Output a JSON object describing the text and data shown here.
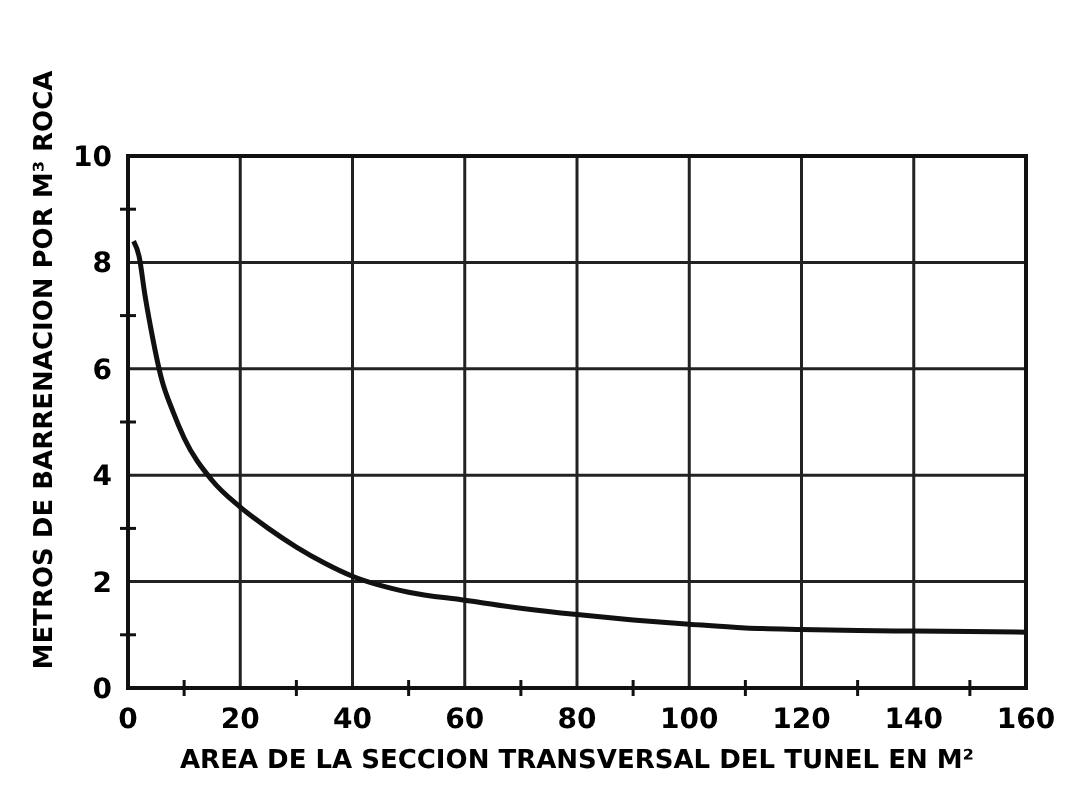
{
  "chart_data": {
    "type": "line",
    "xlabel": "AREA DE LA SECCION TRANSVERSAL DEL TUNEL EN M²",
    "ylabel": "METROS DE BARRENACION POR M³ ROCA",
    "xlim": [
      0,
      160
    ],
    "ylim": [
      0,
      10
    ],
    "xticks": [
      0,
      {
        "value": 10,
        "label": null
      },
      20,
      {
        "value": 30,
        "label": null
      },
      40,
      {
        "value": 50,
        "label": null
      },
      60,
      {
        "value": 70,
        "label": null
      },
      80,
      {
        "value": 90,
        "label": null
      },
      100,
      {
        "value": 110,
        "label": null
      },
      120,
      {
        "value": 130,
        "label": null
      },
      140,
      {
        "value": 150,
        "label": null
      },
      160
    ],
    "yticks": [
      0,
      {
        "value": 1,
        "label": null
      },
      2,
      {
        "value": 3,
        "label": null
      },
      4,
      {
        "value": 5,
        "label": null
      },
      6,
      {
        "value": 7,
        "label": null
      },
      8,
      {
        "value": 9,
        "label": null
      },
      10
    ],
    "grid": true,
    "marker": "none",
    "line_style": "solid",
    "series": [
      {
        "color": "#111111",
        "x": [
          1,
          2,
          3,
          4,
          6,
          8,
          10,
          15,
          20,
          25,
          30,
          35,
          40,
          50,
          60,
          70,
          80,
          90,
          100,
          110,
          120,
          130,
          140,
          160
        ],
        "values": [
          8.4,
          8.1,
          7.4,
          6.8,
          5.8,
          5.2,
          4.7,
          3.9,
          3.4,
          3.0,
          2.65,
          2.35,
          2.1,
          1.8,
          1.65,
          1.5,
          1.38,
          1.28,
          1.2,
          1.13,
          1.1,
          1.08,
          1.07,
          1.05
        ]
      }
    ]
  }
}
